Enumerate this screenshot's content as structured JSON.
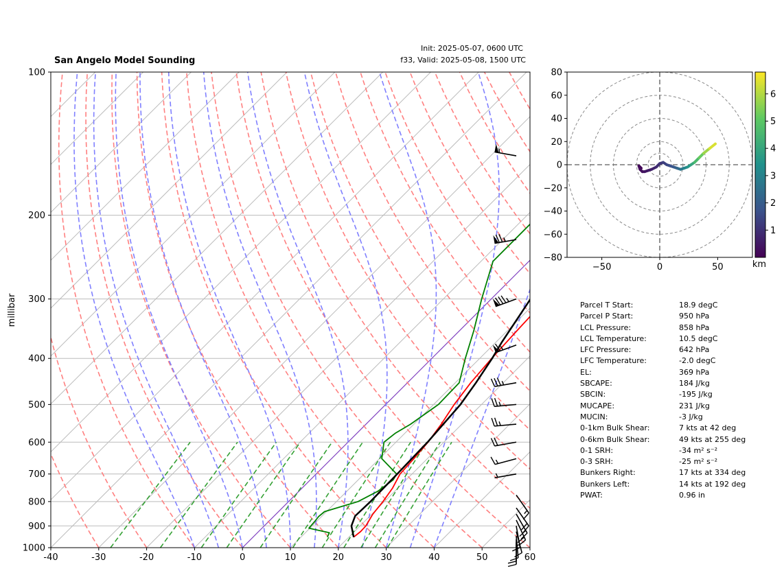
{
  "header": {
    "title": "San Angelo Model Sounding",
    "init": "Init: 2025-05-07, 0600 UTC",
    "valid": "f33, Valid: 2025-05-08, 1500 UTC"
  },
  "colors": {
    "temperature": "#ff0000",
    "dewpoint": "#008000",
    "parcel": "#000000",
    "dry_adiabats": "#ff8080",
    "moist_adiabats": "#8080ff",
    "mixing_ratio": "#33a033",
    "isotherms": "#bbbbbb",
    "zero_isotherm": "#7f3fbf",
    "hodo_rings": "#888888"
  },
  "chart_data": [
    {
      "type": "line",
      "kind": "skew-t log-p",
      "xlabel": "",
      "ylabel": "millibar",
      "xlim": [
        -40,
        60
      ],
      "ylim": [
        1000,
        100
      ],
      "y_scale": "log",
      "x_ticks": [
        -40,
        -30,
        -20,
        -10,
        0,
        10,
        20,
        30,
        40,
        50,
        60
      ],
      "y_ticks": [
        1000,
        900,
        800,
        700,
        600,
        500,
        400,
        300,
        200,
        100
      ],
      "grid": true,
      "series": [
        {
          "key": "temperature",
          "pressure": [
            950,
            925,
            900,
            850,
            800,
            750,
            700,
            650,
            600,
            550,
            500,
            450,
            400,
            350,
            300,
            250,
            200,
            150,
            100
          ],
          "values": [
            21.0,
            21.3,
            21.2,
            20.2,
            19.7,
            18.9,
            17.5,
            17.2,
            16.7,
            15.7,
            14.3,
            13.2,
            12.5,
            12.0,
            11.5,
            12.3,
            17.0,
            24.6,
            36.0
          ]
        },
        {
          "key": "dewpoint",
          "pressure": [
            950,
            930,
            910,
            880,
            860,
            840,
            800,
            760,
            720,
            700,
            650,
            600,
            575,
            550,
            500,
            450,
            400,
            350,
            300,
            250,
            200,
            150,
            100
          ],
          "values": [
            15.5,
            15.0,
            9.8,
            9.6,
            9.4,
            9.6,
            14.5,
            16.5,
            17.3,
            16.8,
            10.5,
            7.5,
            8.0,
            9.3,
            11.0,
            10.8,
            7.0,
            3.0,
            -2.0,
            -7.5,
            -7.5,
            -1.5,
            8.5
          ]
        },
        {
          "key": "parcel",
          "pressure": [
            950,
            900,
            858,
            800,
            700,
            600,
            500,
            450,
            400,
            369,
            300,
            250,
            200,
            150,
            100
          ],
          "values": [
            21.0,
            18.2,
            16.9,
            17.1,
            16.9,
            16.6,
            15.6,
            14.3,
            12.6,
            11.2,
            8.2,
            5.2,
            1.0,
            -2.5,
            -5.6
          ]
        }
      ],
      "wind_barbs": [
        {
          "pressure": 975,
          "speed_kt": 10,
          "direction_deg": 180
        },
        {
          "pressure": 960,
          "speed_kt": 10,
          "direction_deg": 180
        },
        {
          "pressure": 945,
          "speed_kt": 10,
          "direction_deg": 175
        },
        {
          "pressure": 925,
          "speed_kt": 10,
          "direction_deg": 165
        },
        {
          "pressure": 900,
          "speed_kt": 15,
          "direction_deg": 170
        },
        {
          "pressure": 875,
          "speed_kt": 20,
          "direction_deg": 155
        },
        {
          "pressure": 850,
          "speed_kt": 20,
          "direction_deg": 150
        },
        {
          "pressure": 825,
          "speed_kt": 20,
          "direction_deg": 145
        },
        {
          "pressure": 775,
          "speed_kt": 15,
          "direction_deg": 145
        },
        {
          "pressure": 700,
          "speed_kt": 5,
          "direction_deg": 260
        },
        {
          "pressure": 650,
          "speed_kt": 15,
          "direction_deg": 255
        },
        {
          "pressure": 600,
          "speed_kt": 20,
          "direction_deg": 260
        },
        {
          "pressure": 550,
          "speed_kt": 25,
          "direction_deg": 265
        },
        {
          "pressure": 500,
          "speed_kt": 25,
          "direction_deg": 265
        },
        {
          "pressure": 450,
          "speed_kt": 35,
          "direction_deg": 260
        },
        {
          "pressure": 375,
          "speed_kt": 65,
          "direction_deg": 250
        },
        {
          "pressure": 300,
          "speed_kt": 85,
          "direction_deg": 250
        },
        {
          "pressure": 225,
          "speed_kt": 75,
          "direction_deg": 260
        },
        {
          "pressure": 150,
          "speed_kt": 55,
          "direction_deg": 280
        }
      ]
    },
    {
      "type": "line",
      "kind": "hodograph",
      "xlim": [
        -80,
        80
      ],
      "ylim": [
        -80,
        80
      ],
      "x_ticks": [
        -50,
        0,
        50
      ],
      "y_ticks": [
        -80,
        -60,
        -40,
        -20,
        0,
        20,
        40,
        60,
        80
      ],
      "rings": [
        10,
        20,
        40,
        60,
        80
      ],
      "u": [
        -16,
        -18,
        -17,
        -15,
        -13,
        -10,
        -7,
        -3,
        0,
        3,
        6,
        9,
        12,
        15,
        18,
        21,
        24,
        27,
        30,
        34,
        38,
        43,
        48
      ],
      "v": [
        -3,
        -1,
        -4,
        -6,
        -6,
        -5,
        -4,
        -2,
        1,
        2,
        0,
        -1,
        -2,
        -3,
        -4,
        -3,
        -2,
        0,
        2,
        6,
        10,
        14,
        18
      ],
      "height_km": [
        0.05,
        0.1,
        0.2,
        0.3,
        0.4,
        0.5,
        0.6,
        0.8,
        1.0,
        1.2,
        1.4,
        1.6,
        1.8,
        2.1,
        2.5,
        2.9,
        3.3,
        3.8,
        4.3,
        4.9,
        5.5,
        6.1,
        6.7
      ],
      "colorbar": {
        "label": "km",
        "ticks": [
          1,
          2,
          3,
          4,
          5,
          6
        ],
        "range": [
          0,
          6.8
        ],
        "colormap": "viridis"
      }
    }
  ],
  "parameters": [
    {
      "label": "Parcel T Start:",
      "value": "18.9 degC"
    },
    {
      "label": "Parcel P Start:",
      "value": "950 hPa"
    },
    {
      "label": "LCL Pressure:",
      "value": "858 hPa"
    },
    {
      "label": "LCL Temperature:",
      "value": "10.5 degC"
    },
    {
      "label": "LFC Pressure:",
      "value": "642 hPa"
    },
    {
      "label": "LFC Temperature:",
      "value": "-2.0 degC"
    },
    {
      "label": "EL:",
      "value": "369 hPa"
    },
    {
      "label": "SBCAPE:",
      "value": "184 J/kg"
    },
    {
      "label": "SBCIN:",
      "value": "-195 J/kg"
    },
    {
      "label": "MUCAPE:",
      "value": "231 J/kg"
    },
    {
      "label": "MUCIN:",
      "value": "-3 J/kg"
    },
    {
      "label": "0-1km Bulk Shear:",
      "value": "7 kts at 42 deg"
    },
    {
      "label": "0-6km Bulk Shear:",
      "value": "49 kts at 255 deg"
    },
    {
      "label": "0-1 SRH:",
      "value": "-34 m² s⁻²"
    },
    {
      "label": "0-3 SRH:",
      "value": "-25 m² s⁻²"
    },
    {
      "label": "Bunkers Right:",
      "value": "17 kts at 334 deg"
    },
    {
      "label": "Bunkers Left:",
      "value": "14 kts at 192 deg"
    },
    {
      "label": "PWAT:",
      "value": "0.96 in"
    }
  ]
}
